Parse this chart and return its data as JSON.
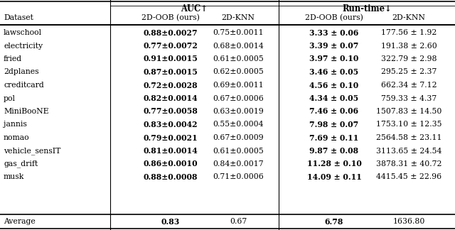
{
  "header_group1": "AUC↑",
  "header_group2": "Run-time↓",
  "col_sub": [
    "2D-OOB (ours)",
    "2D-KNN",
    "2D-OOB (ours)",
    "2D-KNN"
  ],
  "datasets": [
    "lawschool",
    "electricity",
    "fried",
    "2dplanes",
    "creditcard",
    "pol",
    "MiniBooNE",
    "jannis",
    "nomao",
    "vehicle_sensIT",
    "gas_drift",
    "musk"
  ],
  "auc_ours": [
    "0.88±0.0027",
    "0.77±0.0072",
    "0.91±0.0015",
    "0.87±0.0015",
    "0.72±0.0028",
    "0.82±0.0014",
    "0.77±0.0058",
    "0.83±0.0042",
    "0.79±0.0021",
    "0.81±0.0014",
    "0.86±0.0010",
    "0.88±0.0008"
  ],
  "auc_knn": [
    "0.75±0.0011",
    "0.68±0.0014",
    "0.61±0.0005",
    "0.62±0.0005",
    "0.69±0.0011",
    "0.67±0.0006",
    "0.63±0.0019",
    "0.55±0.0004",
    "0.67±0.0009",
    "0.61±0.0005",
    "0.84±0.0017",
    "0.71±0.0006"
  ],
  "runtime_ours": [
    "3.33 ± 0.06",
    "3.39 ± 0.07",
    "3.97 ± 0.10",
    "3.46 ± 0.05",
    "4.56 ± 0.10",
    "4.34 ± 0.05",
    "7.46 ± 0.06",
    "7.98 ± 0.07",
    "7.69 ± 0.11",
    "9.87 ± 0.08",
    "11.28 ± 0.10",
    "14.09 ± 0.11"
  ],
  "runtime_knn": [
    "177.56 ± 1.92",
    "191.38 ± 2.60",
    "322.79 ± 2.98",
    "295.25 ± 2.37",
    "662.34 ± 7.12",
    "759.33 ± 4.37",
    "1507.83 ± 14.50",
    "1753.10 ± 12.35",
    "2564.58 ± 23.11",
    "3113.65 ± 24.54",
    "3878.31 ± 40.72",
    "4415.45 ± 22.96"
  ],
  "avg_auc_ours": "0.83",
  "avg_auc_knn": "0.67",
  "avg_runtime_ours": "6.78",
  "avg_runtime_knn": "1636.80",
  "bg_color": "#ffffff",
  "font_size": 7.8
}
